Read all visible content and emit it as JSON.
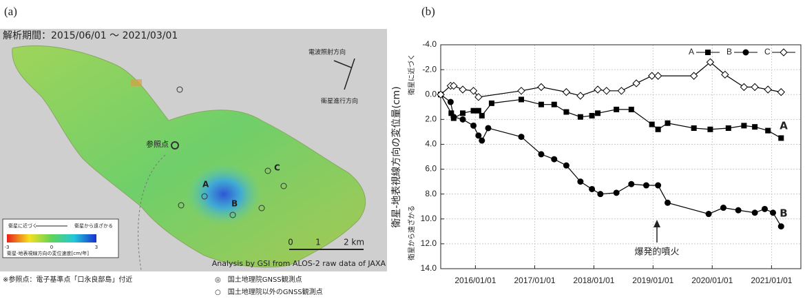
{
  "panel_a": {
    "label": "(a)",
    "period": "解析期間：2015/06/01 ～ 2021/03/01",
    "radar_direction": "電波照射方向",
    "flight_direction": "衛星進行方向",
    "reference": "参照点",
    "points": [
      "A",
      "B",
      "C"
    ],
    "legend": {
      "near": "衛星に近づく",
      "far": "衛星から遠ざかる",
      "ticks": [
        "-3",
        "0",
        "3"
      ],
      "caption": "衛星-地表視線方向の変位速度[cm/年]"
    },
    "scale": [
      "0",
      "1",
      "2 km"
    ],
    "credit": "Analysis by GSI from ALOS-2 raw data of JAXA",
    "footnotes": [
      "※参照点：電子基準点「口永良部島」付近",
      "◎　国土地理院GNSS観測点",
      "○　国土地理院以外のGNSS観測点"
    ]
  },
  "chart_data": {
    "type": "line",
    "panel_label": "(b)",
    "y_label": "衛星-地表視線方向の変位量(cm)",
    "y_top_note": "衛星に近づく",
    "y_bottom_note": "衛星から遠ざかる",
    "annotations": [
      "A",
      "B",
      "爆発的噴火"
    ],
    "xlim": [
      "2015/06/01",
      "2021/07/01"
    ],
    "xticks": [
      "2016/01/01",
      "2017/01/01",
      "2018/01/01",
      "2019/01/01",
      "2020/01/01",
      "2021/01/01"
    ],
    "ylim": [
      -4,
      14
    ],
    "y_reversed": true,
    "yticks": [
      {
        "value": -4,
        "label": "-4.0"
      },
      {
        "value": -2,
        "label": "-2.0"
      },
      {
        "value": 0,
        "label": "0.0"
      },
      {
        "value": 2,
        "label": "2.0"
      },
      {
        "value": 4,
        "label": "4.0"
      },
      {
        "value": 6,
        "label": "6.0"
      },
      {
        "value": 8,
        "label": "8.0"
      },
      {
        "value": 10,
        "label": "10.0"
      },
      {
        "value": 12,
        "label": "12.0"
      },
      {
        "value": 14,
        "label": "14.0"
      }
    ],
    "grid": true,
    "legend": "top-right",
    "series": [
      {
        "name": "A",
        "color": "#000000",
        "marker": "square",
        "x": [
          "2015/06/01",
          "2015/08/05",
          "2015/08/20",
          "2015/10/15",
          "2015/12/20",
          "2016/01/20",
          "2016/02/10",
          "2016/04/10",
          "2016/10/10",
          "2017/02/10",
          "2017/05/01",
          "2017/07/15",
          "2017/10/10",
          "2017/12/20",
          "2018/01/25",
          "2018/05/20",
          "2018/08/20",
          "2018/12/25",
          "2019/02/01",
          "2019/04/01",
          "2019/09/10",
          "2019/12/20",
          "2020/04/10",
          "2020/07/15",
          "2020/09/20",
          "2020/12/10",
          "2021/03/01"
        ],
        "values": [
          0.0,
          1.5,
          1.9,
          1.5,
          1.3,
          1.3,
          1.7,
          0.7,
          0.4,
          0.8,
          0.8,
          1.4,
          1.8,
          1.7,
          1.5,
          1.2,
          1.2,
          2.4,
          2.8,
          2.3,
          2.7,
          2.8,
          2.7,
          2.5,
          2.6,
          2.9,
          3.5
        ]
      },
      {
        "name": "B",
        "color": "#000000",
        "marker": "circle",
        "x": [
          "2015/06/01",
          "2015/08/01",
          "2015/08/20",
          "2015/10/15",
          "2015/12/20",
          "2016/01/20",
          "2016/02/10",
          "2016/03/20",
          "2016/10/10",
          "2017/02/10",
          "2017/05/01",
          "2017/07/15",
          "2017/10/10",
          "2017/12/20",
          "2018/02/10",
          "2018/05/20",
          "2018/08/20",
          "2018/11/20",
          "2019/02/01",
          "2019/04/01",
          "2019/12/10",
          "2020/03/10",
          "2020/06/10",
          "2020/09/20",
          "2020/11/20",
          "2021/01/10",
          "2021/03/01"
        ],
        "values": [
          0.0,
          0.6,
          1.8,
          2.0,
          2.5,
          3.3,
          3.7,
          2.7,
          3.4,
          4.8,
          5.2,
          5.7,
          7.0,
          7.6,
          8.0,
          7.9,
          7.2,
          7.3,
          7.3,
          8.7,
          9.6,
          9.1,
          9.3,
          9.5,
          9.2,
          9.5,
          10.6
        ]
      },
      {
        "name": "C",
        "color": "#000000",
        "marker": "diamond",
        "x": [
          "2015/06/01",
          "2015/08/01",
          "2015/08/20",
          "2015/10/15",
          "2015/12/20",
          "2016/01/20",
          "2016/10/10",
          "2017/02/10",
          "2017/07/15",
          "2017/10/10",
          "2018/01/25",
          "2018/03/20",
          "2018/06/20",
          "2018/09/20",
          "2018/12/25",
          "2019/02/01",
          "2019/09/10",
          "2019/12/20",
          "2020/03/20",
          "2020/07/15",
          "2020/09/20",
          "2020/12/10",
          "2021/03/01"
        ],
        "values": [
          0.0,
          -0.7,
          -0.7,
          -0.4,
          -0.3,
          0.2,
          -0.3,
          -0.6,
          -0.2,
          0.1,
          -0.4,
          -0.3,
          -0.3,
          -0.9,
          -1.5,
          -1.5,
          -1.5,
          -2.6,
          -1.6,
          -0.6,
          -0.6,
          -0.4,
          -0.2
        ]
      }
    ]
  }
}
